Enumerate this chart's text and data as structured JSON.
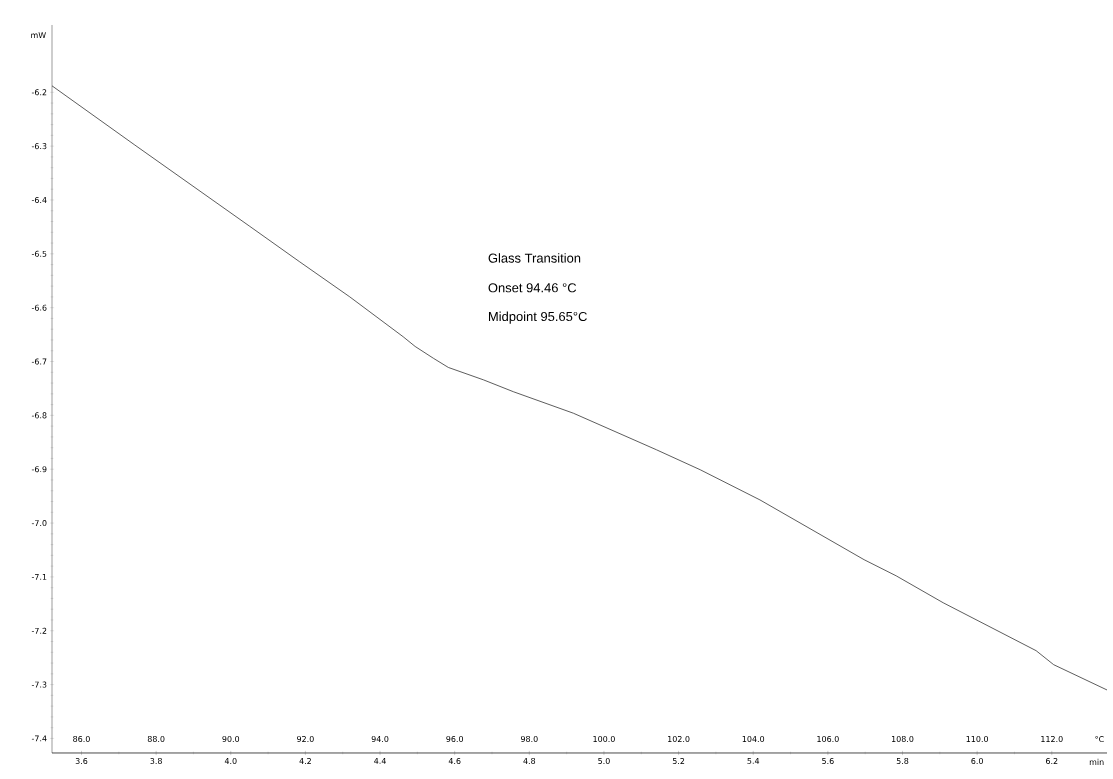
{
  "chart_data": {
    "type": "line",
    "xlabel": "°C",
    "x2label": "min",
    "ylabel": "mW",
    "annotations": [
      "Glass Transition",
      "Onset 94.46 °C",
      "Midpoint 95.65°C"
    ],
    "x": [
      85.21,
      87.43,
      90.51,
      91.85,
      93.19,
      94.62,
      94.94,
      95.43,
      95.83,
      96.77,
      97.57,
      99.18,
      101.41,
      102.58,
      104.18,
      106.97,
      107.83,
      109.09,
      111.58,
      112.05,
      113.48
    ],
    "values": [
      -6.188,
      -6.298,
      -6.449,
      -6.515,
      -6.58,
      -6.654,
      -6.672,
      -6.694,
      -6.711,
      -6.734,
      -6.756,
      -6.796,
      -6.864,
      -6.901,
      -6.957,
      -7.068,
      -7.098,
      -7.148,
      -7.237,
      -7.263,
      -7.31
    ],
    "color": "#333333",
    "xlim": [
      85.21,
      113.48
    ],
    "xticks": [
      {
        "value": 86,
        "label": "86.0"
      },
      {
        "value": 88,
        "label": "88.0"
      },
      {
        "value": 90,
        "label": "90.0"
      },
      {
        "value": 92,
        "label": "92.0"
      },
      {
        "value": 94,
        "label": "94.0"
      },
      {
        "value": 96,
        "label": "96.0"
      },
      {
        "value": 98,
        "label": "98.0"
      },
      {
        "value": 100,
        "label": "100.0"
      },
      {
        "value": 102,
        "label": "102.0"
      },
      {
        "value": 104,
        "label": "104.0"
      },
      {
        "value": 106,
        "label": "106.0"
      },
      {
        "value": 108,
        "label": "108.0"
      },
      {
        "value": 110,
        "label": "110.0"
      },
      {
        "value": 112,
        "label": "112.0"
      }
    ],
    "x2lim": [
      3.521,
      6.348
    ],
    "x2ticks": [
      {
        "value": 3.6,
        "label": "3.6"
      },
      {
        "value": 3.8,
        "label": "3.8"
      },
      {
        "value": 4.0,
        "label": "4.0"
      },
      {
        "value": 4.2,
        "label": "4.2"
      },
      {
        "value": 4.4,
        "label": "4.4"
      },
      {
        "value": 4.6,
        "label": "4.6"
      },
      {
        "value": 4.8,
        "label": "4.8"
      },
      {
        "value": 5.0,
        "label": "5.0"
      },
      {
        "value": 5.2,
        "label": "5.2"
      },
      {
        "value": 5.4,
        "label": "5.4"
      },
      {
        "value": 5.6,
        "label": "5.6"
      },
      {
        "value": 5.8,
        "label": "5.8"
      },
      {
        "value": 6.0,
        "label": "6.0"
      },
      {
        "value": 6.2,
        "label": "6.2"
      }
    ],
    "ylim": [
      -7.427,
      -6.075
    ],
    "yticks": [
      {
        "value": -7.4,
        "label": "-7.4"
      },
      {
        "value": -7.3,
        "label": "-7.3"
      },
      {
        "value": -7.2,
        "label": "-7.2"
      },
      {
        "value": -7.1,
        "label": "-7.1"
      },
      {
        "value": -7.0,
        "label": "-7.0"
      },
      {
        "value": -6.9,
        "label": "-6.9"
      },
      {
        "value": -6.8,
        "label": "-6.8"
      },
      {
        "value": -6.7,
        "label": "-6.7"
      },
      {
        "value": -6.6,
        "label": "-6.6"
      },
      {
        "value": -6.5,
        "label": "-6.5"
      },
      {
        "value": -6.4,
        "label": "-6.4"
      },
      {
        "value": -6.3,
        "label": "-6.3"
      },
      {
        "value": -6.2,
        "label": "-6.2"
      }
    ]
  }
}
